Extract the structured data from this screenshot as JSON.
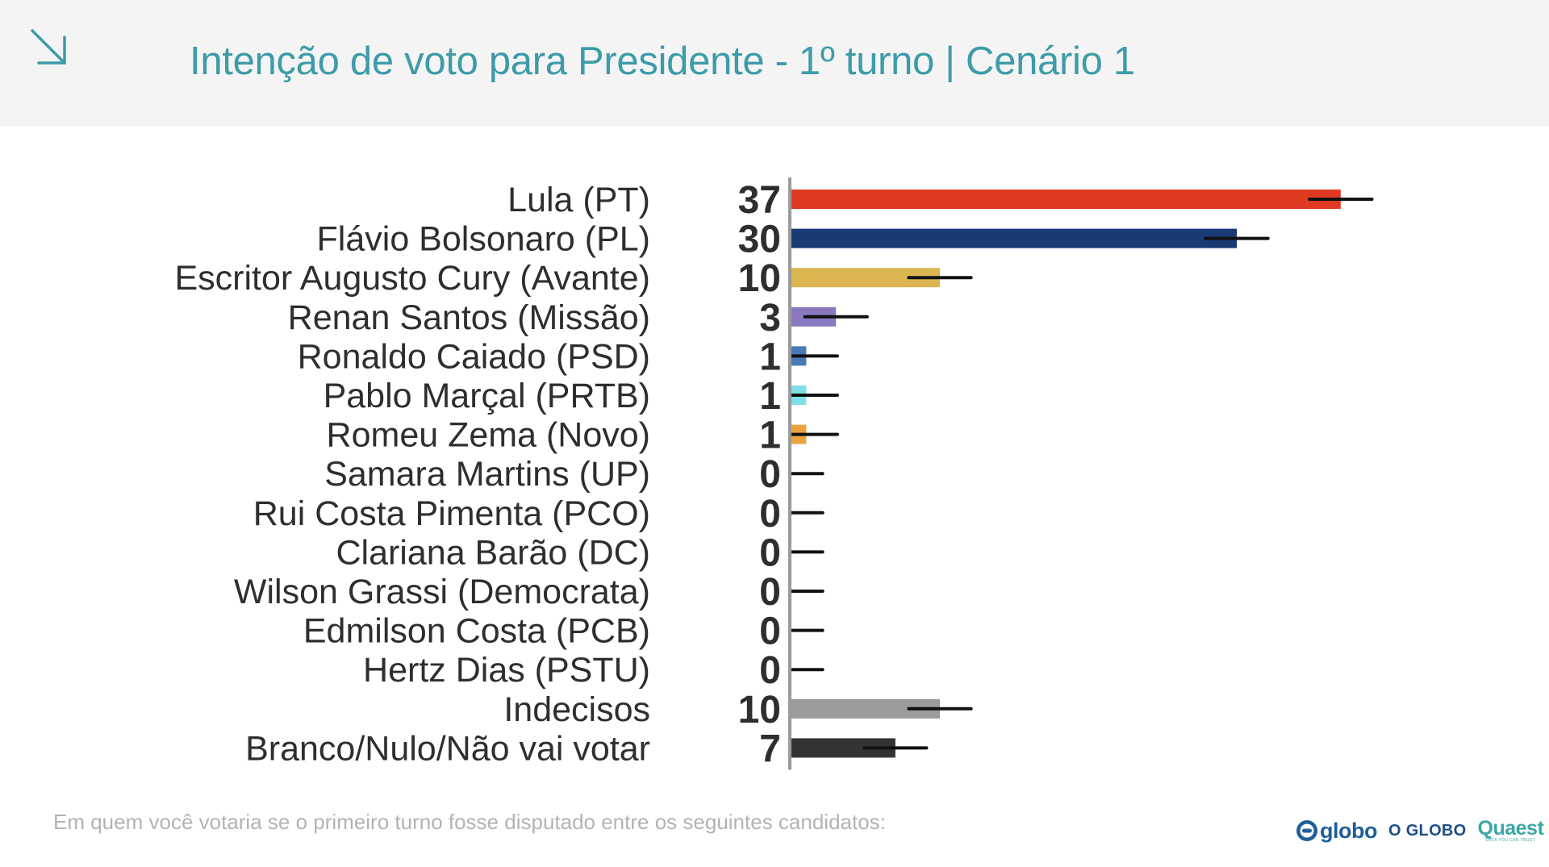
{
  "header": {
    "title": "Intenção de voto para Presidente - 1º turno | Cenário 1",
    "icon": "arrow-down-right-icon"
  },
  "chart_data": {
    "type": "bar",
    "orientation": "horizontal",
    "title": "Intenção de voto para Presidente - 1º turno | Cenário 1",
    "xlim": [
      0,
      42
    ],
    "error_bars": true,
    "grid": false,
    "categories": [
      "Lula (PT)",
      "Flávio Bolsonaro (PL)",
      "Escritor Augusto Cury (Avante)",
      "Renan Santos (Missão)",
      "Ronaldo Caiado (PSD)",
      "Pablo Marçal (PRTB)",
      "Romeu Zema (Novo)",
      "Samara Martins (UP)",
      "Rui Costa Pimenta (PCO)",
      "Clariana Barão (DC)",
      "Wilson Grassi (Democrata)",
      "Edmilson Costa (PCB)",
      "Hertz Dias (PSTU)",
      "Indecisos",
      "Branco/Nulo/Não vai votar"
    ],
    "values": [
      37,
      30,
      10,
      3,
      1,
      1,
      1,
      0,
      0,
      0,
      0,
      0,
      0,
      10,
      7
    ],
    "labels": [
      "37",
      "30",
      "10",
      "3",
      "1",
      "1",
      "1",
      "0",
      "0",
      "0",
      "0",
      "0",
      "0",
      "10",
      "7"
    ],
    "colors": [
      "#e03a22",
      "#1a3a73",
      "#dbb650",
      "#8a79c0",
      "#4a79b8",
      "#7ee0e6",
      "#eba33f",
      "#999999",
      "#999999",
      "#999999",
      "#999999",
      "#999999",
      "#999999",
      "#9b9b9b",
      "#333333"
    ],
    "error_margin": [
      2.1,
      2.1,
      2.1,
      2.1,
      2.1,
      2.1,
      2.1,
      2.1,
      2.1,
      2.1,
      2.1,
      2.1,
      2.1,
      2.1,
      2.1
    ]
  },
  "footer": {
    "note": "Em quem você votaria se o primeiro turno fosse disputado entre os seguintes candidatos:"
  },
  "logos": {
    "globo": "globo",
    "oglobo": "O GLOBO",
    "quaest": "Quaest",
    "quaest_tagline": "DATA YOU CAN TRUST",
    "globo_color": "#1f5f9a",
    "quaest_color": "#3aa7a6"
  },
  "colors": {
    "title": "#3e9ba8",
    "header_bg": "#f4f4f4",
    "axis": "#9a9a9a",
    "error_bar": "#111111"
  }
}
